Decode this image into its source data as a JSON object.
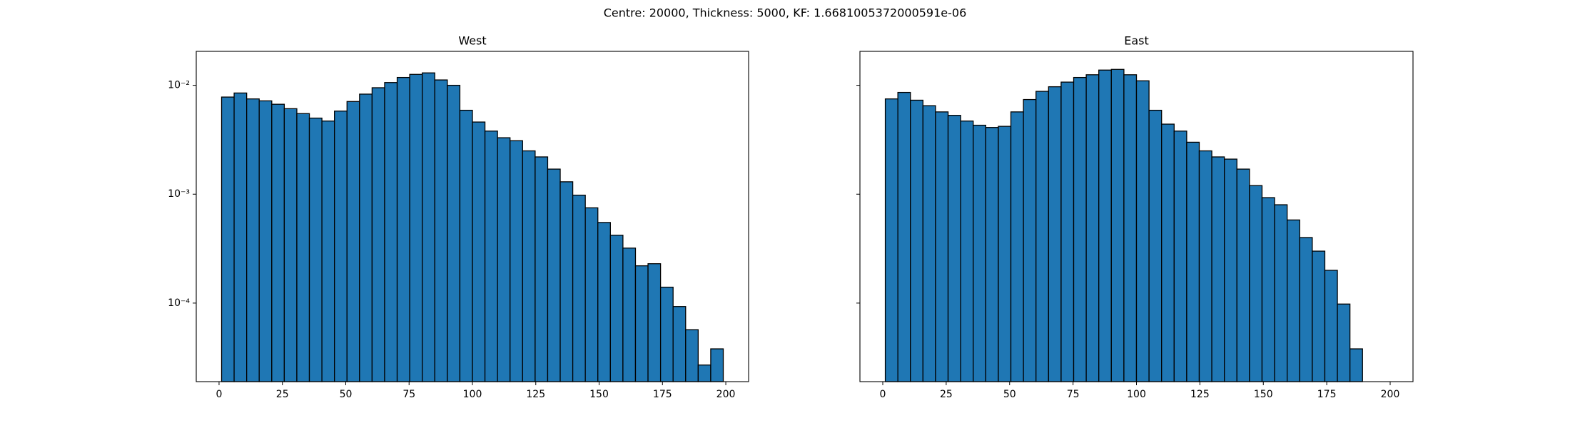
{
  "suptitle": "Centre: 20000, Thickness: 5000, KF: 1.6681005372000591e-06",
  "chart_data": [
    {
      "type": "histogram",
      "title": "West",
      "color": "#1f77b4",
      "edgecolor": "#000000",
      "log_y": true,
      "bins": [
        1,
        5.95,
        10.9,
        15.85,
        20.8,
        25.75,
        30.7,
        35.65,
        40.6,
        45.55,
        50.5,
        55.45,
        60.4,
        65.35,
        70.3,
        75.25,
        80.2,
        85.15,
        90.1,
        95.05,
        100,
        104.95,
        109.9,
        114.85,
        119.8,
        124.75,
        129.7,
        134.65,
        139.6,
        144.55,
        149.5,
        154.45,
        159.4,
        164.35,
        169.3,
        174.25,
        179.2,
        184.15,
        189.1,
        194.05,
        199
      ],
      "values": [
        0.0078,
        0.0085,
        0.0075,
        0.0072,
        0.0067,
        0.0061,
        0.0055,
        0.005,
        0.0047,
        0.0058,
        0.0071,
        0.0083,
        0.0095,
        0.0106,
        0.0118,
        0.0126,
        0.013,
        0.0112,
        0.01,
        0.0059,
        0.0046,
        0.0038,
        0.0033,
        0.0031,
        0.0025,
        0.0022,
        0.0017,
        0.0013,
        0.00098,
        0.00075,
        0.00055,
        0.00042,
        0.00032,
        0.00022,
        0.00023,
        0.00014,
        9.3e-05,
        5.7e-05,
        2.7e-05,
        3.8e-05
      ],
      "xlim": [
        -9,
        209
      ],
      "xticks": [
        0,
        25,
        50,
        75,
        100,
        125,
        150,
        175,
        200
      ],
      "ylim": [
        1.9e-05,
        0.0205
      ],
      "yticks": [
        {
          "value": 0.0001,
          "label": "10⁻⁴"
        },
        {
          "value": 0.001,
          "label": "10⁻³"
        },
        {
          "value": 0.01,
          "label": "10⁻²"
        }
      ],
      "show_ytick_labels": true
    },
    {
      "type": "histogram",
      "title": "East",
      "color": "#1f77b4",
      "edgecolor": "#000000",
      "log_y": true,
      "bins": [
        1,
        5.95,
        10.9,
        15.85,
        20.8,
        25.75,
        30.7,
        35.65,
        40.6,
        45.55,
        50.5,
        55.45,
        60.4,
        65.35,
        70.3,
        75.25,
        80.2,
        85.15,
        90.1,
        95.05,
        100,
        104.95,
        109.9,
        114.85,
        119.8,
        124.75,
        129.7,
        134.65,
        139.6,
        144.55,
        149.5,
        154.45,
        159.4,
        164.35,
        169.3,
        174.25,
        179.2,
        184.15,
        189.1
      ],
      "values": [
        0.0075,
        0.0086,
        0.0073,
        0.0065,
        0.0057,
        0.0053,
        0.0047,
        0.0043,
        0.0041,
        0.0042,
        0.0057,
        0.0074,
        0.0088,
        0.0097,
        0.0107,
        0.0118,
        0.0125,
        0.0138,
        0.014,
        0.0125,
        0.011,
        0.0059,
        0.0044,
        0.0038,
        0.003,
        0.0025,
        0.0022,
        0.0021,
        0.0017,
        0.0012,
        0.00093,
        0.0008,
        0.00058,
        0.0004,
        0.0003,
        0.0002,
        9.8e-05,
        3.8e-05
      ],
      "xlim": [
        -9,
        209
      ],
      "xticks": [
        0,
        25,
        50,
        75,
        100,
        125,
        150,
        175,
        200
      ],
      "ylim": [
        1.9e-05,
        0.0205
      ],
      "yticks": [
        {
          "value": 0.0001,
          "label": "10⁻⁴"
        },
        {
          "value": 0.001,
          "label": "10⁻³"
        },
        {
          "value": 0.01,
          "label": "10⁻²"
        }
      ],
      "show_ytick_labels": false
    }
  ]
}
